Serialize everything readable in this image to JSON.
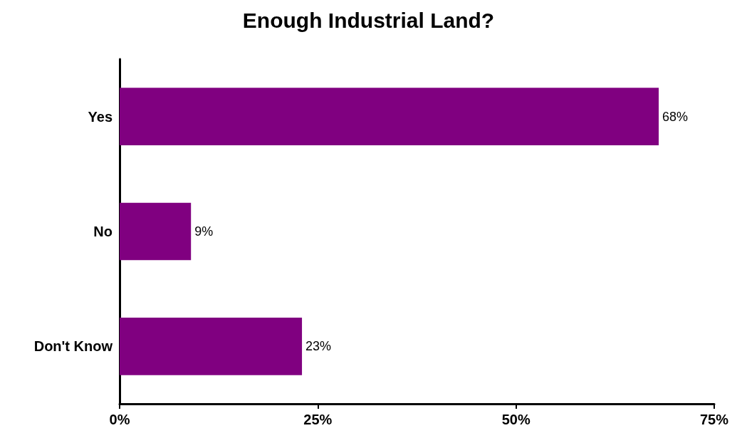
{
  "chart_data": {
    "type": "bar",
    "orientation": "horizontal",
    "title": "Enough Industrial Land?",
    "categories": [
      "Yes",
      "No",
      "Don't Know"
    ],
    "values": [
      68,
      9,
      23
    ],
    "value_labels": [
      "68%",
      "9%",
      "23%"
    ],
    "color": "#800080",
    "xlim": [
      0,
      75
    ],
    "xticks": [
      {
        "value": 0,
        "label": "0%"
      },
      {
        "value": 25,
        "label": "25%"
      },
      {
        "value": 50,
        "label": "50%"
      },
      {
        "value": 75,
        "label": "75%"
      }
    ],
    "grid": false
  }
}
